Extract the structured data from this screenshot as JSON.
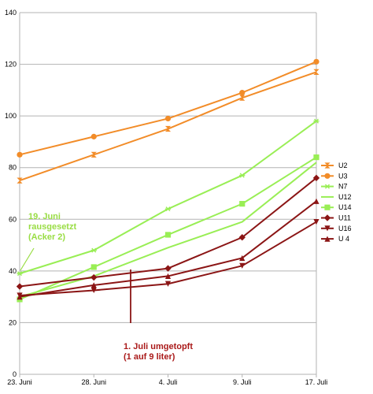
{
  "chart_data": {
    "type": "line",
    "x": [
      "23. Juni",
      "28. Juni",
      "4. Juli",
      "9. Juli",
      "17. Juli"
    ],
    "ylim": [
      0,
      140
    ],
    "yticks": [
      0,
      20,
      40,
      60,
      80,
      100,
      120,
      140
    ],
    "grid": "horizontal",
    "legend_position": "right",
    "series": [
      {
        "name": "U2",
        "color": "#f28c28",
        "marker": "hourglass",
        "values": [
          75,
          85,
          95,
          107,
          117
        ]
      },
      {
        "name": "U3",
        "color": "#f28c28",
        "marker": "circle",
        "values": [
          85,
          92,
          99,
          109,
          121
        ]
      },
      {
        "name": "N7",
        "color": "#99ee55",
        "marker": "star",
        "values": [
          39,
          48,
          64,
          77,
          98
        ]
      },
      {
        "name": "U12",
        "color": "#99ee55",
        "marker": "none",
        "values": [
          30,
          38,
          49,
          59,
          82
        ]
      },
      {
        "name": "U14",
        "color": "#99ee55",
        "marker": "square",
        "values": [
          29,
          41.5,
          54,
          66,
          84
        ]
      },
      {
        "name": "U11",
        "color": "#8b1515",
        "marker": "diamond",
        "values": [
          34,
          37.5,
          41,
          53,
          76
        ]
      },
      {
        "name": "U16",
        "color": "#8b1515",
        "marker": "tri-down",
        "values": [
          30.5,
          32.5,
          35,
          42,
          59
        ]
      },
      {
        "name": "U 4",
        "color": "#8b1515",
        "marker": "tri-up",
        "values": [
          30,
          34.5,
          38,
          45,
          67
        ]
      }
    ],
    "annotations": [
      {
        "id": "anno-green",
        "lines": [
          "19. Juni",
          "rausgesetzt",
          "(Acker 2)"
        ],
        "color": "#99dd44",
        "x": "23. Juni",
        "y": 57
      },
      {
        "id": "anno-red",
        "lines": [
          "1. Juli umgetopft",
          "(1 auf 9 liter)"
        ],
        "color": "#aa1a1a",
        "x": "4. Juli",
        "y": 14
      }
    ]
  }
}
